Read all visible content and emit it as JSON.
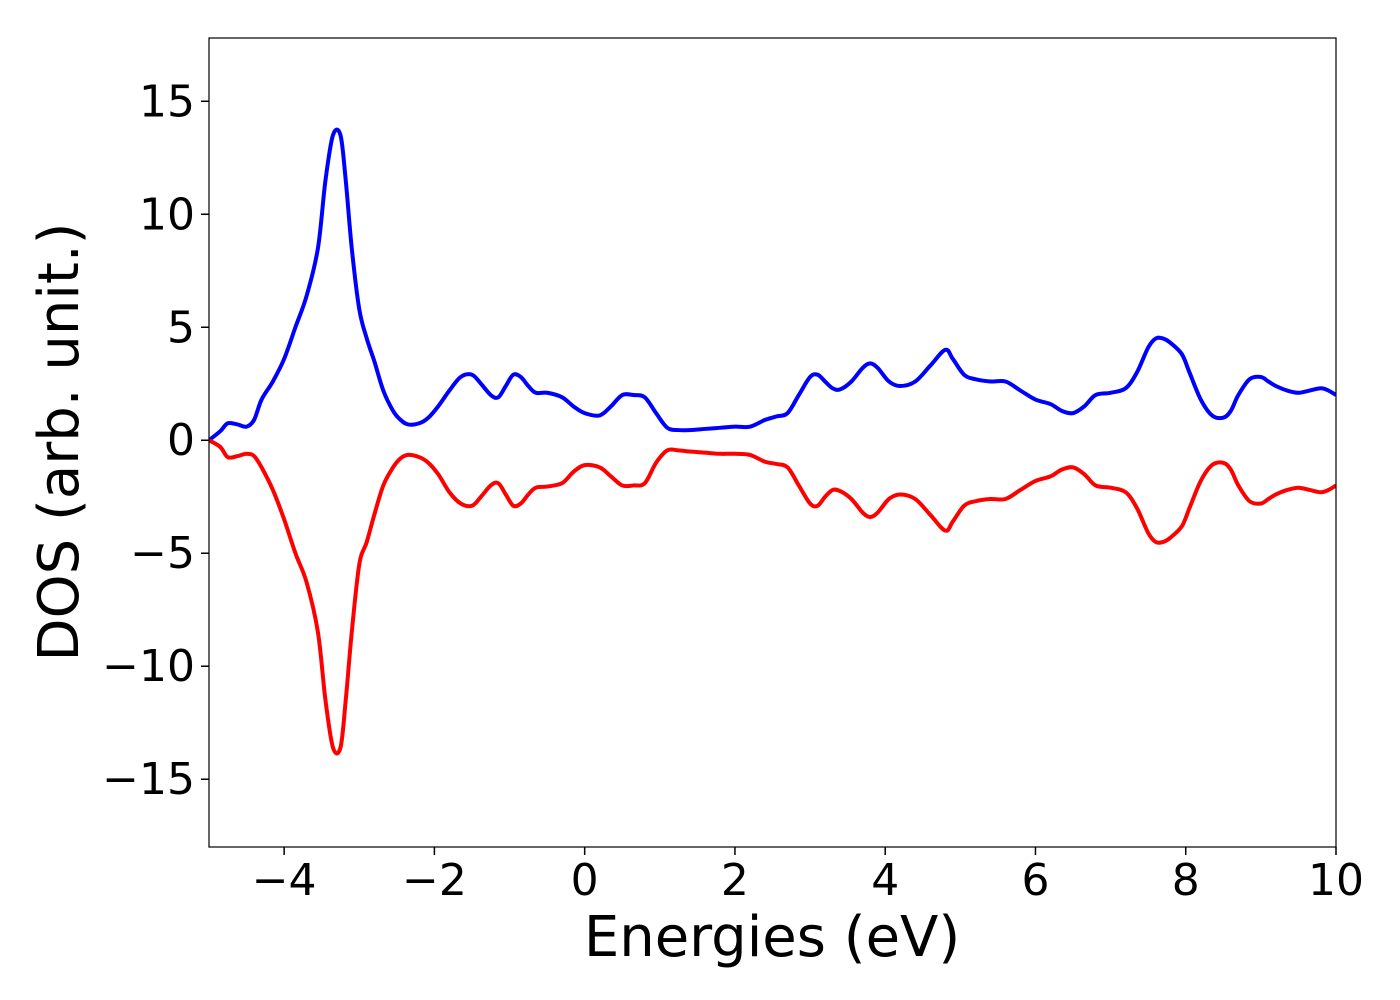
{
  "chart_data": {
    "type": "line",
    "title": "",
    "xlabel": "Energies (eV)",
    "ylabel": "DOS (arb. unit.)",
    "xlim": [
      -5,
      10
    ],
    "ylim": [
      -18,
      17.8
    ],
    "grid": false,
    "x_ticks": [
      -4,
      -2,
      0,
      2,
      4,
      6,
      8,
      10
    ],
    "x_tick_labels": [
      "−4",
      "−2",
      "0",
      "2",
      "4",
      "6",
      "8",
      "10"
    ],
    "y_ticks": [
      15,
      10,
      5,
      0,
      -5,
      -10,
      -15
    ],
    "y_tick_labels": [
      "15",
      "10",
      "5",
      "0",
      "−5",
      "−10",
      "−15"
    ],
    "series": [
      {
        "color": "#0000ff",
        "x": [
          -5.0,
          -4.85,
          -4.75,
          -4.62,
          -4.5,
          -4.4,
          -4.3,
          -4.15,
          -4.0,
          -3.85,
          -3.7,
          -3.55,
          -3.45,
          -3.35,
          -3.25,
          -3.18,
          -3.1,
          -3.0,
          -2.9,
          -2.8,
          -2.68,
          -2.55,
          -2.45,
          -2.35,
          -2.2,
          -2.08,
          -1.95,
          -1.8,
          -1.65,
          -1.5,
          -1.38,
          -1.25,
          -1.15,
          -1.05,
          -0.95,
          -0.85,
          -0.75,
          -0.65,
          -0.5,
          -0.3,
          -0.15,
          0.0,
          0.2,
          0.35,
          0.5,
          0.65,
          0.8,
          0.95,
          1.1,
          1.25,
          1.4,
          1.6,
          1.8,
          2.0,
          2.2,
          2.4,
          2.55,
          2.7,
          2.85,
          3.0,
          3.1,
          3.2,
          3.3,
          3.4,
          3.55,
          3.7,
          3.8,
          3.9,
          4.05,
          4.2,
          4.4,
          4.6,
          4.8,
          4.9,
          5.05,
          5.2,
          5.4,
          5.6,
          5.8,
          6.0,
          6.2,
          6.35,
          6.5,
          6.65,
          6.8,
          7.0,
          7.2,
          7.35,
          7.5,
          7.6,
          7.7,
          7.8,
          7.95,
          8.05,
          8.2,
          8.35,
          8.5,
          8.6,
          8.7,
          8.85,
          9.0,
          9.1,
          9.2,
          9.35,
          9.5,
          9.65,
          9.8,
          9.9,
          10.0
        ],
        "y": [
          0.0,
          0.4,
          0.75,
          0.7,
          0.6,
          0.9,
          1.8,
          2.6,
          3.6,
          5.0,
          6.4,
          8.5,
          11.5,
          13.5,
          13.5,
          11.5,
          8.5,
          5.8,
          4.5,
          3.5,
          2.2,
          1.3,
          0.9,
          0.7,
          0.75,
          1.0,
          1.5,
          2.2,
          2.8,
          2.9,
          2.5,
          2.0,
          1.9,
          2.4,
          2.9,
          2.8,
          2.4,
          2.1,
          2.1,
          1.9,
          1.5,
          1.2,
          1.1,
          1.5,
          2.0,
          2.0,
          1.9,
          1.2,
          0.55,
          0.45,
          0.45,
          0.5,
          0.55,
          0.6,
          0.6,
          0.9,
          1.05,
          1.2,
          2.0,
          2.8,
          2.9,
          2.6,
          2.3,
          2.25,
          2.6,
          3.2,
          3.4,
          3.2,
          2.6,
          2.4,
          2.6,
          3.3,
          4.0,
          3.6,
          2.9,
          2.7,
          2.6,
          2.6,
          2.2,
          1.8,
          1.6,
          1.3,
          1.2,
          1.5,
          2.0,
          2.1,
          2.3,
          3.0,
          4.1,
          4.5,
          4.5,
          4.3,
          3.8,
          3.0,
          1.8,
          1.1,
          1.0,
          1.3,
          2.0,
          2.7,
          2.8,
          2.6,
          2.4,
          2.2,
          2.1,
          2.2,
          2.3,
          2.2,
          2.0
        ]
      },
      {
        "color": "#ff0000",
        "x": [
          -5.0,
          -4.85,
          -4.75,
          -4.62,
          -4.5,
          -4.4,
          -4.3,
          -4.15,
          -4.0,
          -3.85,
          -3.7,
          -3.55,
          -3.45,
          -3.35,
          -3.25,
          -3.18,
          -3.1,
          -3.0,
          -2.9,
          -2.8,
          -2.68,
          -2.55,
          -2.45,
          -2.35,
          -2.2,
          -2.08,
          -1.95,
          -1.8,
          -1.65,
          -1.5,
          -1.38,
          -1.25,
          -1.15,
          -1.05,
          -0.95,
          -0.85,
          -0.75,
          -0.65,
          -0.5,
          -0.3,
          -0.15,
          0.0,
          0.2,
          0.35,
          0.5,
          0.65,
          0.8,
          0.95,
          1.1,
          1.25,
          1.4,
          1.6,
          1.8,
          2.0,
          2.2,
          2.4,
          2.55,
          2.7,
          2.85,
          3.0,
          3.1,
          3.2,
          3.3,
          3.4,
          3.55,
          3.7,
          3.8,
          3.9,
          4.05,
          4.2,
          4.4,
          4.6,
          4.8,
          4.9,
          5.05,
          5.2,
          5.4,
          5.6,
          5.8,
          6.0,
          6.2,
          6.35,
          6.5,
          6.65,
          6.8,
          7.0,
          7.2,
          7.35,
          7.5,
          7.6,
          7.7,
          7.8,
          7.95,
          8.05,
          8.2,
          8.35,
          8.5,
          8.6,
          8.7,
          8.85,
          9.0,
          9.1,
          9.2,
          9.35,
          9.5,
          9.65,
          9.8,
          9.9,
          10.0
        ],
        "y": [
          0.0,
          -0.3,
          -0.75,
          -0.7,
          -0.6,
          -0.7,
          -1.2,
          -2.2,
          -3.5,
          -5.0,
          -6.3,
          -8.5,
          -11.5,
          -13.6,
          -13.6,
          -11.5,
          -8.5,
          -5.5,
          -4.5,
          -3.3,
          -2.0,
          -1.2,
          -0.8,
          -0.65,
          -0.75,
          -1.0,
          -1.5,
          -2.3,
          -2.8,
          -2.9,
          -2.5,
          -2.0,
          -1.9,
          -2.4,
          -2.9,
          -2.8,
          -2.4,
          -2.1,
          -2.05,
          -1.9,
          -1.4,
          -1.1,
          -1.2,
          -1.6,
          -2.0,
          -2.0,
          -1.9,
          -1.0,
          -0.45,
          -0.45,
          -0.5,
          -0.55,
          -0.6,
          -0.6,
          -0.65,
          -0.95,
          -1.05,
          -1.2,
          -2.0,
          -2.8,
          -2.9,
          -2.5,
          -2.2,
          -2.25,
          -2.6,
          -3.2,
          -3.4,
          -3.2,
          -2.6,
          -2.4,
          -2.6,
          -3.3,
          -4.0,
          -3.6,
          -2.9,
          -2.7,
          -2.6,
          -2.6,
          -2.2,
          -1.8,
          -1.6,
          -1.3,
          -1.2,
          -1.5,
          -2.0,
          -2.1,
          -2.3,
          -3.0,
          -4.1,
          -4.5,
          -4.5,
          -4.3,
          -3.8,
          -3.0,
          -1.8,
          -1.1,
          -1.0,
          -1.3,
          -2.0,
          -2.7,
          -2.8,
          -2.6,
          -2.4,
          -2.2,
          -2.1,
          -2.2,
          -2.3,
          -2.2,
          -2.0
        ]
      }
    ]
  }
}
